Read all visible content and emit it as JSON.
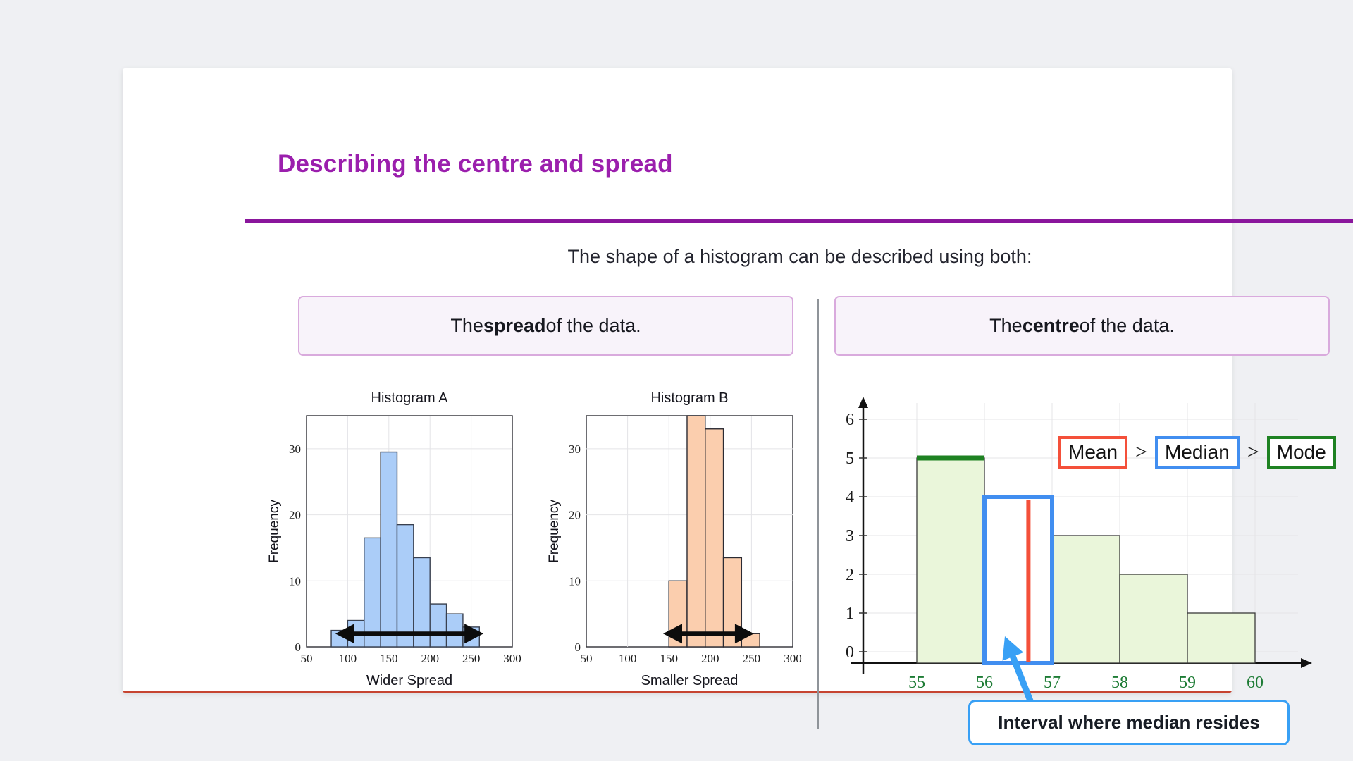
{
  "slide": {
    "title": "Describing the centre and spread",
    "subtitle": "The shape of a histogram can be described using both:",
    "spread_box": {
      "prefix": "The ",
      "bold": "spread",
      "suffix": " of the data."
    },
    "centre_box": {
      "prefix": "The ",
      "bold": "centre",
      "suffix": " of the data."
    }
  },
  "colors": {
    "title_purple": "#9b1fad",
    "rule_purple": "#8a169c",
    "card_bottom_red": "#c64430",
    "pill_bg": "#f8f3fa",
    "pill_border": "#d9aadd",
    "divider_gray": "#8f9499",
    "grid_gray": "#e4e4e7",
    "hist_a_fill": "#abcdf8",
    "hist_a_stroke": "#39404f",
    "hist_b_fill": "#fbceae",
    "hist_b_stroke": "#2b2b33",
    "centre_fill": "#eaf6da",
    "centre_stroke": "#3a3a3a",
    "mode_green": "#1e8222",
    "median_blue": "#418ef0",
    "mean_red": "#f4503a",
    "callout_blue": "#38a0f5",
    "xtick_green": "#1e7c35"
  },
  "chart_data": [
    {
      "id": "histogram_a",
      "type": "bar",
      "title": "Histogram A",
      "xlabel": "Wider Spread",
      "ylabel": "Frequency",
      "xlim": [
        50,
        300
      ],
      "ylim": [
        0,
        35
      ],
      "xticks": [
        50,
        100,
        150,
        200,
        250,
        300
      ],
      "yticks": [
        0,
        10,
        20,
        30
      ],
      "bin_start": 80,
      "bin_width": 20,
      "values": [
        2.5,
        4,
        16.5,
        29.5,
        18.5,
        13.5,
        6.5,
        5,
        3
      ],
      "spread_arrow": {
        "x1": 85,
        "x2": 265,
        "y": 2
      }
    },
    {
      "id": "histogram_b",
      "type": "bar",
      "title": "Histogram B",
      "xlabel": "Smaller Spread",
      "ylabel": "Frequency",
      "xlim": [
        50,
        300
      ],
      "ylim": [
        0,
        35
      ],
      "xticks": [
        50,
        100,
        150,
        200,
        250,
        300
      ],
      "yticks": [
        0,
        10,
        20,
        30
      ],
      "bin_start": 150,
      "bin_width": 22,
      "values": [
        10,
        35,
        33,
        13.5,
        2
      ],
      "spread_arrow": {
        "x1": 143,
        "x2": 253,
        "y": 2
      }
    },
    {
      "id": "centre_histogram",
      "type": "bar",
      "title": "",
      "xlim": [
        54.2,
        60.8
      ],
      "ylim": [
        0,
        6.6
      ],
      "xticks": [
        55,
        56,
        57,
        58,
        59,
        60
      ],
      "yticks": [
        0,
        1,
        2,
        3,
        4,
        5,
        6
      ],
      "bin_start": 55,
      "bin_width": 1,
      "values": [
        5,
        4,
        3,
        2,
        1
      ],
      "mode_bar_index": 0,
      "median_bar_index": 1,
      "mean_x": 56.65,
      "annotations": {
        "mean_label": "Mean",
        "median_label": "Median",
        "mode_label": "Mode",
        "greater_than": ">",
        "callout": "Interval where median resides"
      }
    }
  ]
}
